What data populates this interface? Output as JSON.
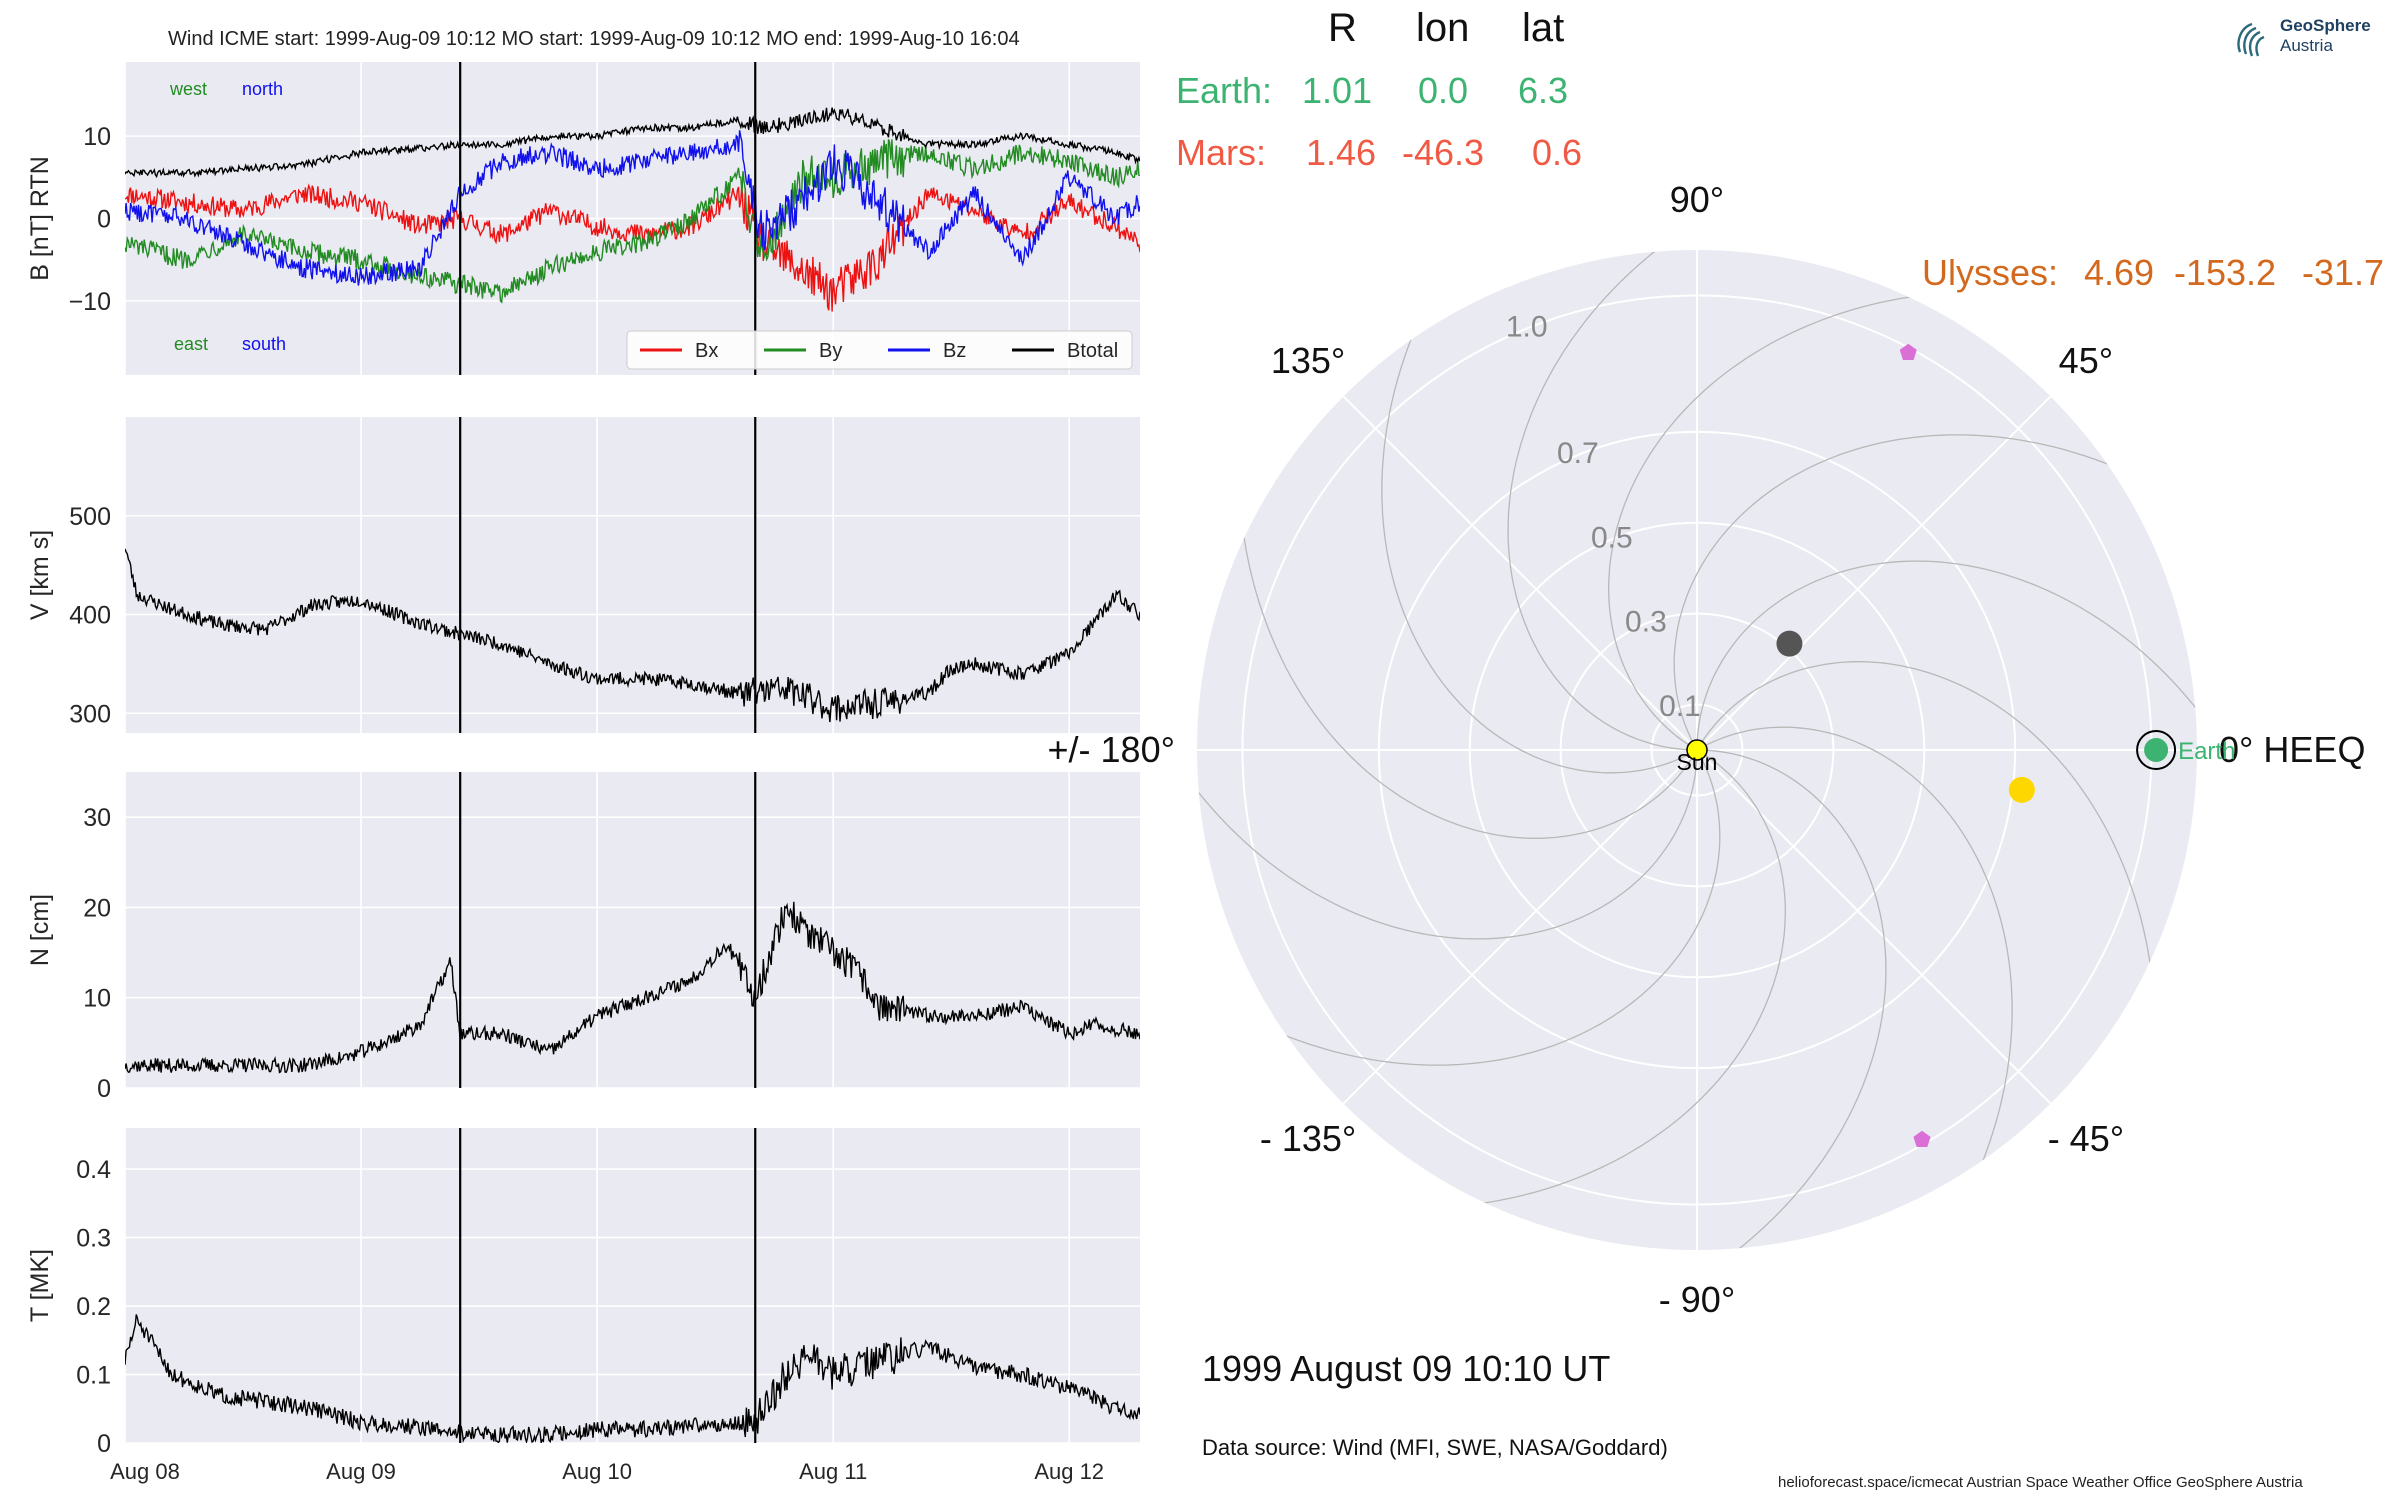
{
  "header": {
    "title": "Wind    ICME start: 1999-Aug-09 10:12   MO start: 1999-Aug-09 10:12   MO end: 1999-Aug-10 16:04"
  },
  "branding": {
    "name": "GeoSphere",
    "sub": "Austria"
  },
  "positions_table": {
    "columns": [
      "R",
      "lon",
      "lat"
    ],
    "rows": [
      {
        "label": "Earth:",
        "R": "1.01",
        "lon": "0.0",
        "lat": "6.3",
        "color": "#3cb371"
      },
      {
        "label": "Mars:",
        "R": "1.46",
        "lon": "-46.3",
        "lat": "0.6",
        "color": "#f05a45"
      },
      {
        "label": "Ulysses:",
        "R": "4.69",
        "lon": "-153.2",
        "lat": "-31.7",
        "color": "#d2691e"
      }
    ]
  },
  "time_label": "1999 August 09  10:10 UT",
  "data_source": "Data source: Wind (MFI, SWE, NASA/Goddard)",
  "footer": "helioforecast.space/icmecat   Austrian Space Weather Office   GeoSphere Austria",
  "chart_data": [
    {
      "type": "line",
      "ylabel": "B [nT] RTN",
      "ylim": [
        -19,
        19
      ],
      "yticks": [
        -10,
        0,
        10
      ],
      "xlim": [
        0,
        4.3
      ],
      "xticks": [
        0,
        1,
        2,
        3,
        4
      ],
      "xticklabels": [
        "Aug 08",
        "Aug 09",
        "Aug 10",
        "Aug 11",
        "Aug 12"
      ],
      "vlines": [
        1.42,
        2.67
      ],
      "annotations": [
        {
          "text": "west",
          "color": "#228b22"
        },
        {
          "text": "north",
          "color": "#1010ee"
        },
        {
          "text": "east",
          "color": "#228b22"
        },
        {
          "text": "south",
          "color": "#1010ee"
        }
      ],
      "legend": "lower-right",
      "series": [
        {
          "name": "Bx",
          "color": "#ee1111",
          "x": [
            0,
            0.25,
            0.5,
            0.75,
            1,
            1.25,
            1.42,
            1.6,
            1.8,
            2,
            2.2,
            2.4,
            2.6,
            2.7,
            2.9,
            3,
            3.2,
            3.4,
            3.6,
            3.8,
            4,
            4.2,
            4.3
          ],
          "y": [
            3,
            2,
            1,
            3,
            2,
            -1,
            0,
            -2,
            1,
            -1,
            -2,
            -1,
            3,
            -3,
            -7,
            -9,
            -5,
            3,
            1,
            -2,
            2,
            -1,
            -3
          ]
        },
        {
          "name": "By",
          "color": "#228b22",
          "x": [
            0,
            0.25,
            0.5,
            0.75,
            1,
            1.25,
            1.42,
            1.6,
            1.8,
            2,
            2.2,
            2.4,
            2.6,
            2.7,
            2.9,
            3,
            3.2,
            3.4,
            3.6,
            3.8,
            4,
            4.2,
            4.3
          ],
          "y": [
            -3,
            -5,
            -2,
            -4,
            -5,
            -7,
            -8,
            -9,
            -6,
            -4,
            -3,
            0,
            5,
            -4,
            6,
            5,
            7,
            8,
            6,
            8,
            7,
            5,
            6
          ]
        },
        {
          "name": "Bz",
          "color": "#1111ee",
          "x": [
            0,
            0.25,
            0.5,
            0.75,
            1,
            1.25,
            1.42,
            1.6,
            1.8,
            2,
            2.2,
            2.4,
            2.6,
            2.7,
            2.9,
            3,
            3.2,
            3.4,
            3.6,
            3.8,
            4,
            4.2,
            4.3
          ],
          "y": [
            1,
            0,
            -3,
            -6,
            -7,
            -6,
            3,
            7,
            8,
            6,
            7,
            8,
            9,
            -2,
            3,
            7,
            2,
            -4,
            3,
            -5,
            5,
            0,
            2
          ]
        },
        {
          "name": "Btotal",
          "color": "#000000",
          "x": [
            0,
            0.25,
            0.5,
            0.75,
            1,
            1.25,
            1.42,
            1.6,
            1.8,
            2,
            2.2,
            2.4,
            2.6,
            2.7,
            2.9,
            3,
            3.2,
            3.4,
            3.6,
            3.8,
            4,
            4.2,
            4.3
          ],
          "y": [
            5.5,
            5.5,
            6,
            6.5,
            8,
            8.5,
            9,
            9,
            10,
            10,
            11,
            11,
            12,
            11,
            12,
            13,
            11,
            9,
            9,
            10,
            9,
            8,
            7
          ]
        }
      ]
    },
    {
      "type": "line",
      "ylabel": "V [km s$^{-1}$]",
      "ylim": [
        280,
        600
      ],
      "yticks": [
        300,
        400,
        500
      ],
      "xlim": [
        0,
        4.3
      ],
      "vlines": [
        1.42,
        2.67
      ],
      "series": [
        {
          "name": "",
          "color": "#000000",
          "x": [
            0,
            0.05,
            0.2,
            0.4,
            0.6,
            0.8,
            1,
            1.2,
            1.42,
            1.6,
            1.8,
            2,
            2.2,
            2.4,
            2.6,
            2.8,
            3,
            3.2,
            3.4,
            3.5,
            3.6,
            3.8,
            4,
            4.2,
            4.3
          ],
          "y": [
            470,
            420,
            405,
            390,
            385,
            410,
            415,
            395,
            380,
            370,
            350,
            335,
            335,
            330,
            320,
            325,
            305,
            310,
            320,
            345,
            350,
            340,
            360,
            420,
            400
          ]
        }
      ]
    },
    {
      "type": "line",
      "ylabel": "N [cm$^{-3}$]",
      "ylim": [
        0,
        35
      ],
      "yticks": [
        0,
        10,
        20,
        30
      ],
      "xlim": [
        0,
        4.3
      ],
      "vlines": [
        1.42,
        2.67
      ],
      "series": [
        {
          "name": "",
          "color": "#000000",
          "x": [
            0,
            0.25,
            0.5,
            0.75,
            0.95,
            1.1,
            1.25,
            1.38,
            1.42,
            1.6,
            1.8,
            2,
            2.2,
            2.4,
            2.55,
            2.67,
            2.8,
            2.9,
            3,
            3.1,
            3.2,
            3.4,
            3.6,
            3.8,
            4,
            4.1,
            4.3
          ],
          "y": [
            2.5,
            2.5,
            2.5,
            2.5,
            3.5,
            5,
            7,
            14,
            6,
            6,
            4,
            8,
            10,
            12,
            16,
            10,
            20,
            17,
            15,
            13,
            9,
            8,
            8,
            9,
            6,
            7,
            6
          ]
        }
      ]
    },
    {
      "type": "line",
      "ylabel": "T [MK]",
      "ylim": [
        0,
        0.46
      ],
      "yticks": [
        0.0,
        0.1,
        0.2,
        0.3,
        0.4
      ],
      "xlim": [
        0,
        4.3
      ],
      "xticks": [
        0,
        1,
        2,
        3,
        4
      ],
      "xticklabels": [
        "Aug 08",
        "Aug 09",
        "Aug 10",
        "Aug 11",
        "Aug 12"
      ],
      "vlines": [
        1.42,
        2.67
      ],
      "series": [
        {
          "name": "",
          "color": "#000000",
          "x": [
            0,
            0.05,
            0.2,
            0.4,
            0.6,
            0.8,
            1,
            1.2,
            1.42,
            1.6,
            1.8,
            2,
            2.2,
            2.4,
            2.67,
            2.8,
            2.9,
            3,
            3.2,
            3.4,
            3.6,
            3.8,
            4,
            4.2,
            4.3
          ],
          "y": [
            0.12,
            0.18,
            0.1,
            0.07,
            0.06,
            0.05,
            0.03,
            0.025,
            0.015,
            0.012,
            0.012,
            0.02,
            0.02,
            0.025,
            0.03,
            0.1,
            0.13,
            0.1,
            0.12,
            0.14,
            0.11,
            0.1,
            0.08,
            0.05,
            0.04
          ]
        }
      ]
    },
    {
      "type": "scatter",
      "subtype": "polar",
      "rlim": [
        0,
        1.1
      ],
      "rticks": [
        0.1,
        0.3,
        0.5,
        0.7,
        1.0
      ],
      "rticklabels": [
        "0.1",
        "0.3",
        "0.5",
        "0.7",
        "1.0"
      ],
      "angle_labels": [
        {
          "deg": 0,
          "text": "0° HEEQ"
        },
        {
          "deg": 45,
          "text": "45°"
        },
        {
          "deg": 90,
          "text": "90°"
        },
        {
          "deg": 135,
          "text": "135°"
        },
        {
          "deg": 180,
          "text": "+/- 180°"
        },
        {
          "deg": -135,
          "text": "- 135°"
        },
        {
          "deg": -90,
          "text": "- 90°"
        },
        {
          "deg": -45,
          "text": "- 45°"
        }
      ],
      "bodies": [
        {
          "name": "Sun",
          "r": 0.0,
          "lon": 0,
          "color": "#ffff00",
          "marker": "circle",
          "label": "Sun"
        },
        {
          "name": "Earth",
          "r": 1.01,
          "lon": 0.0,
          "color": "#3cb371",
          "marker": "circle-ring",
          "label": "Earth"
        },
        {
          "name": "",
          "r": 0.31,
          "lon": 49,
          "color": "#555555",
          "marker": "circle",
          "label": ""
        },
        {
          "name": "",
          "r": 0.72,
          "lon": -7,
          "color": "#ffd700",
          "marker": "circle",
          "label": ""
        },
        {
          "name": "",
          "r": 0.99,
          "lon": 62,
          "color": "#da70d6",
          "marker": "pentagon",
          "label": ""
        },
        {
          "name": "",
          "r": 0.99,
          "lon": -60,
          "color": "#da70d6",
          "marker": "pentagon",
          "label": ""
        }
      ]
    }
  ]
}
